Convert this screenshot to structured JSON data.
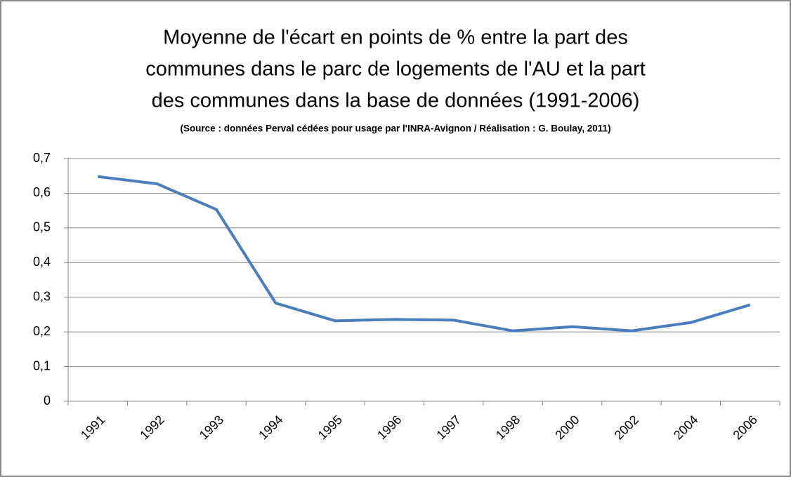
{
  "chart_data": {
    "type": "line",
    "title": [
      "Moyenne de l'écart en points de % entre la part des",
      "communes dans le parc de logements de l'AU et la part",
      "des communes dans la base de données (1991-2006)"
    ],
    "subtitle": "(Source : données Perval cédées pour usage par l'INRA-Avignon / Réalisation : G. Boulay, 2011)",
    "categories": [
      "1991",
      "1992",
      "1993",
      "1994",
      "1995",
      "1996",
      "1997",
      "1998",
      "2000",
      "2002",
      "2004",
      "2006"
    ],
    "values": [
      0.648,
      0.627,
      0.553,
      0.283,
      0.232,
      0.236,
      0.234,
      0.203,
      0.215,
      0.203,
      0.227,
      0.278
    ],
    "color": "#4a7ebb",
    "ylim": [
      0,
      0.7
    ],
    "yticks": [
      0,
      {
        "value": 0.1,
        "label": "0,1"
      },
      {
        "value": 0.2,
        "label": "0,2"
      },
      {
        "value": 0.3,
        "label": "0,3"
      },
      {
        "value": 0.4,
        "label": "0,4"
      },
      {
        "value": 0.5,
        "label": "0,5"
      },
      {
        "value": 0.6,
        "label": "0,6"
      },
      {
        "value": 0.7,
        "label": "0,7"
      }
    ],
    "grid": true
  }
}
